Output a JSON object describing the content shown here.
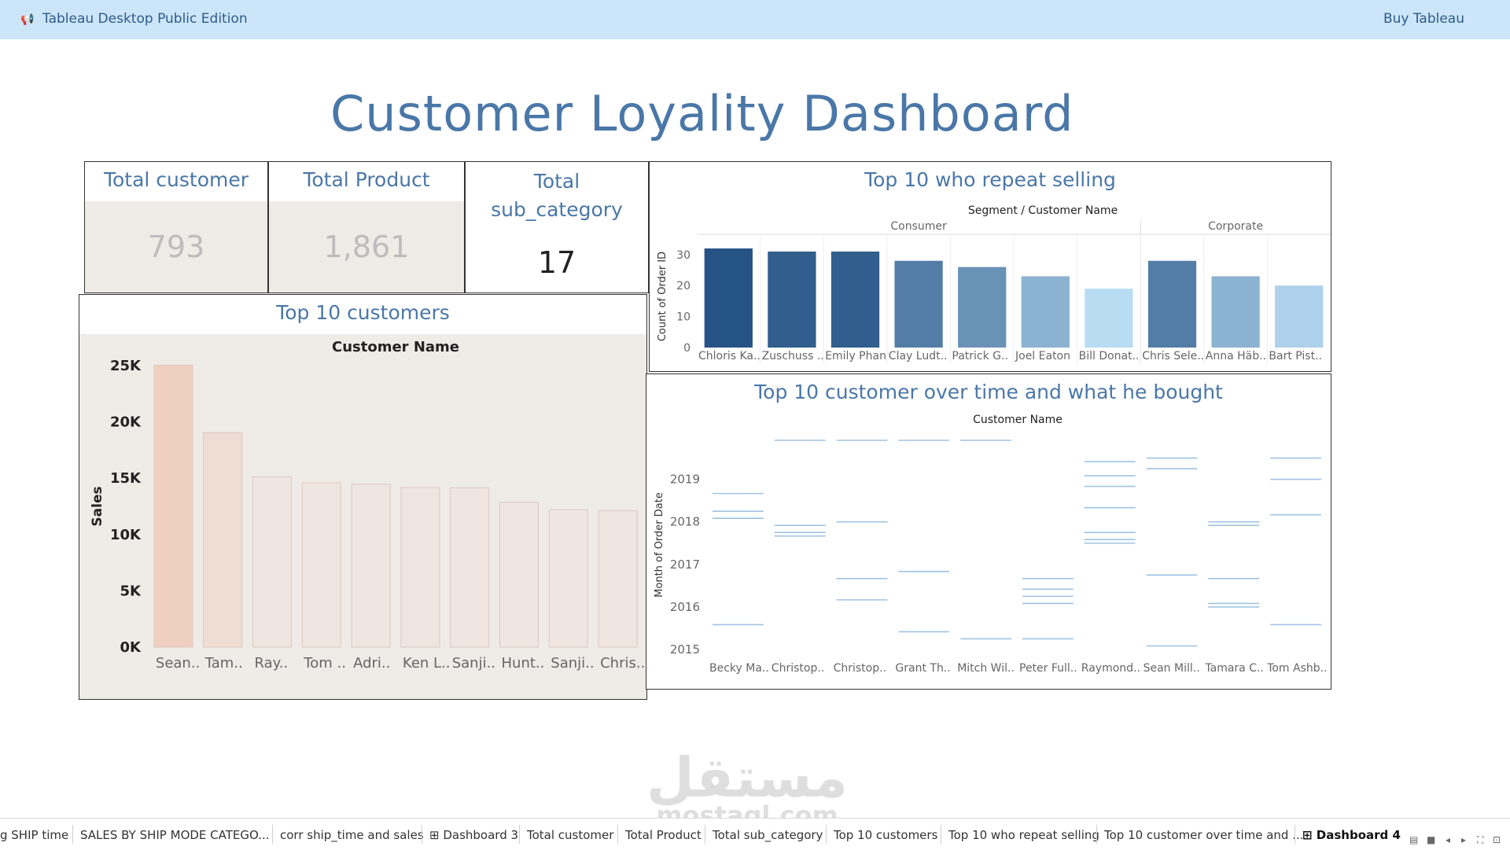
{
  "app": {
    "title": "Tableau Desktop Public Edition",
    "buy_label": "Buy Tableau",
    "logo_icon": "megaphone-icon"
  },
  "dashboard": {
    "title": "Customer Loyality Dashboard"
  },
  "kpis": {
    "total_customer": {
      "label": "Total customer",
      "value": "793"
    },
    "total_product": {
      "label": "Total Product",
      "value": "1,861"
    },
    "total_sub_category": {
      "label_line1": "Total",
      "label_line2": "sub_category",
      "value": "17"
    }
  },
  "chart_data": [
    {
      "id": "top_customers",
      "type": "bar",
      "title": "Top 10 customers",
      "header": "Customer Name",
      "ylabel": "Sales",
      "ylim": [
        0,
        25000
      ],
      "yticks": [
        0,
        5000,
        10000,
        15000,
        20000,
        25000
      ],
      "ytick_labels": [
        "0K",
        "5K",
        "10K",
        "15K",
        "20K",
        "25K"
      ],
      "categories": [
        "Sean..",
        "Tam..",
        "Ray..",
        "Tom ..",
        "Adri..",
        "Ken L..",
        "Sanji..",
        "Hunt..",
        "Sanji..",
        "Chris.."
      ],
      "values": [
        25043,
        19052,
        15117,
        14595,
        14474,
        14175,
        14142,
        12873,
        12209,
        12129
      ]
    },
    {
      "id": "repeat_selling",
      "type": "bar",
      "title": "Top 10 who repeat selling",
      "header": "Segment  /  Customer Name",
      "ylabel": "Count of Order ID",
      "ylim": [
        0,
        33
      ],
      "yticks": [
        0,
        10,
        20,
        30
      ],
      "segments": [
        {
          "name": "Consumer",
          "count": 7
        },
        {
          "name": "Corporate",
          "count": 3
        }
      ],
      "categories": [
        "Chloris Ka..",
        "Zuschuss ..",
        "Emily Phan",
        "Clay Ludt..",
        "Patrick G..",
        "Joel Eaton",
        "Bill Donat..",
        "Chris Sele..",
        "Anna Häb..",
        "Bart Pist.."
      ],
      "values": [
        32,
        31,
        31,
        28,
        26,
        23,
        19,
        28,
        23,
        20
      ]
    },
    {
      "id": "over_time",
      "type": "scatter",
      "title": "Top 10 customer over time and what he bought",
      "header": "Customer Name",
      "ylabel": "Month of Order Date",
      "ylim": [
        "2015-01",
        "2019-12"
      ],
      "yticks": [
        "2015",
        "2016",
        "2017",
        "2018",
        "2019"
      ],
      "categories": [
        "Becky Ma..",
        "Christop..",
        "Christop..",
        "Grant Th..",
        "Mitch Wil..",
        "Peter Full..",
        "Raymond..",
        "Sean Mill..",
        "Tamara C..",
        "Tom Ashb.."
      ],
      "series": [
        {
          "values": [
            "2015-08",
            "2018-02",
            "2018-04",
            "2018-09"
          ]
        },
        {
          "values": [
            "2017-09",
            "2017-10",
            "2017-12",
            "2019-12"
          ]
        },
        {
          "values": [
            "2016-03",
            "2016-09",
            "2018-01",
            "2019-12"
          ]
        },
        {
          "values": [
            "2015-06",
            "2016-11",
            "2019-12"
          ]
        },
        {
          "values": [
            "2015-04",
            "2019-12"
          ]
        },
        {
          "values": [
            "2015-04",
            "2016-02",
            "2016-04",
            "2016-06",
            "2016-09"
          ]
        },
        {
          "values": [
            "2017-07",
            "2017-08",
            "2017-10",
            "2018-05",
            "2018-11",
            "2019-02",
            "2019-06"
          ]
        },
        {
          "values": [
            "2015-02",
            "2016-10",
            "2019-04",
            "2019-07"
          ]
        },
        {
          "values": [
            "2016-01",
            "2016-02",
            "2016-09",
            "2017-12",
            "2018-01"
          ]
        },
        {
          "values": [
            "2015-08",
            "2018-03",
            "2019-01",
            "2019-07"
          ]
        }
      ]
    }
  ],
  "tabs": [
    {
      "label": "g SHIP time"
    },
    {
      "label": "SALES BY SHIP MODE CATEGO..."
    },
    {
      "label": "corr ship_time and sales"
    },
    {
      "label": "Dashboard 3",
      "icon": "grid-icon"
    },
    {
      "label": "Total customer"
    },
    {
      "label": "Total Product"
    },
    {
      "label": "Total sub_category"
    },
    {
      "label": "Top 10 customers"
    },
    {
      "label": "Top 10 who repeat selling"
    },
    {
      "label": "Top 10 customer over time and ..."
    },
    {
      "label": "Dashboard 4",
      "icon": "grid-icon",
      "active": true
    }
  ],
  "colors": {
    "accent": "#4a77a8",
    "topbar": "#cde5f8",
    "panel": "#efebe7"
  }
}
